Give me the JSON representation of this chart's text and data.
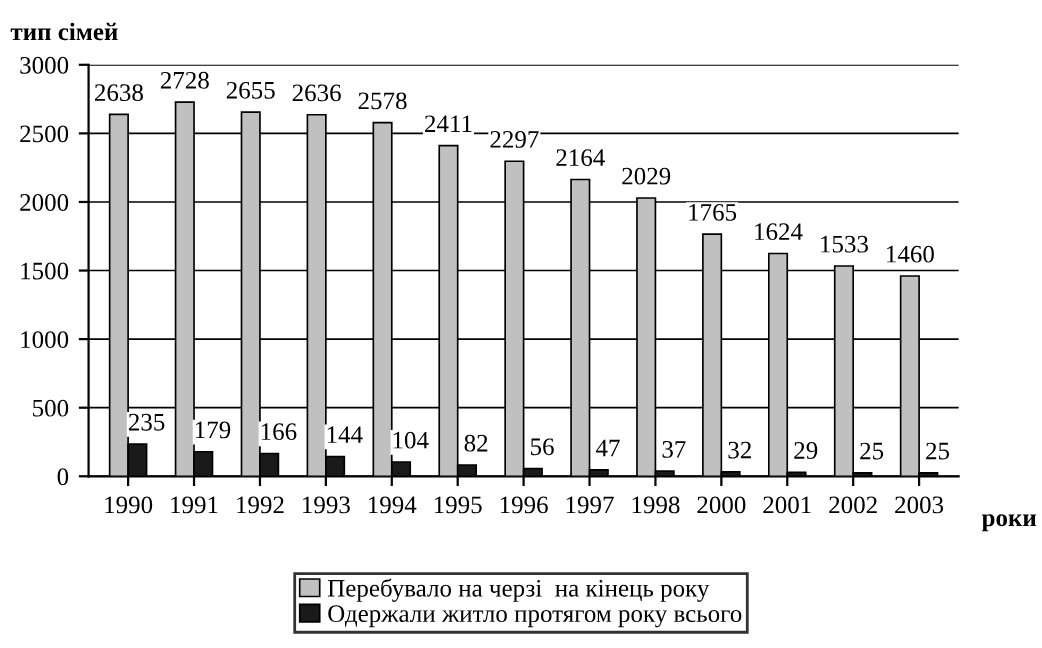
{
  "chart_data": {
    "type": "bar",
    "ylabel": "тип сімей",
    "xlabel": "роки",
    "categories": [
      "1990",
      "1991",
      "1992",
      "1993",
      "1994",
      "1995",
      "1996",
      "1997",
      "1998",
      "2000",
      "2001",
      "2002",
      "2003"
    ],
    "series": [
      {
        "name": "Перебувало на черзі  на кінець року",
        "color": "#c0c0c0",
        "values": [
          2638,
          2728,
          2655,
          2636,
          2578,
          2411,
          2297,
          2164,
          2029,
          1765,
          1624,
          1533,
          1460
        ]
      },
      {
        "name": "Одержали житло протягом року всього",
        "color": "#1a1a1a",
        "values": [
          235,
          179,
          166,
          144,
          104,
          82,
          56,
          47,
          37,
          32,
          29,
          25,
          25
        ]
      }
    ],
    "ylim": [
      0,
      3000
    ],
    "yticks": [
      0,
      500,
      1000,
      1500,
      2000,
      2500,
      3000
    ],
    "grid": "y",
    "legend": "bottom",
    "data_labels": true
  }
}
